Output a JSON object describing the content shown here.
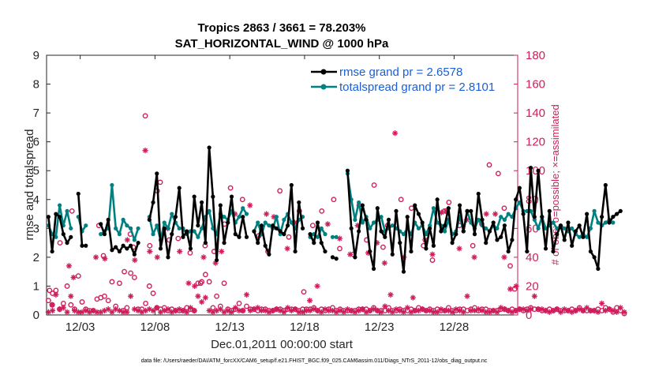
{
  "chart_data": {
    "type": "line",
    "title": "Tropics 2863 / 3661 = 78.203%",
    "subtitle": "SAT_HORIZONTAL_WIND @ 1000 hPa",
    "xlabel": "Dec.01,2011 00:00:00 start",
    "ylabel": "rmse and totalspread",
    "ylabel_right": "# of obs: o=possible; ×=assimilated",
    "footnote": "data file: /Users/raeder/DAI/ATM_forcXX/CAM6_setup/f.e21.FHIST_BGC.f09_025.CAM6assim.011/Diags_NTrS_2011-12/obs_diag_output.nc",
    "x_unit": "days since Dec.01,2011 00:00",
    "xlim": [
      0,
      31.5
    ],
    "ylim": [
      0,
      9
    ],
    "ylim_right": [
      0,
      180
    ],
    "x_ticks": [
      {
        "value": 2.25,
        "label": "12/03"
      },
      {
        "value": 7.25,
        "label": "12/08"
      },
      {
        "value": 12.25,
        "label": "12/13"
      },
      {
        "value": 17.25,
        "label": "12/18"
      },
      {
        "value": 22.25,
        "label": "12/23"
      },
      {
        "value": 27.25,
        "label": "12/28"
      }
    ],
    "y_ticks": [
      "0",
      "1",
      "2",
      "3",
      "4",
      "5",
      "6",
      "7",
      "8",
      "9"
    ],
    "y_ticks_right": [
      "0",
      "20",
      "40",
      "60",
      "80",
      "100",
      "120",
      "140",
      "160",
      "180"
    ],
    "legend": {
      "location": "top-right",
      "entries": [
        "rmse grand pr = 2.6578",
        "totalspread grand pr = 2.8101"
      ]
    },
    "colors": {
      "rmse": "#000000",
      "totalspread": "#008080",
      "obs": "#d01c5b",
      "legend_text": "#1a5fd6"
    },
    "series": [
      {
        "name": "rmse",
        "x_start": 0.125,
        "dx": 0.25,
        "values": [
          3.4,
          2.2,
          3.5,
          3.4,
          2.8,
          2.5,
          2.7,
          null,
          4.2,
          2.4,
          2.4,
          null,
          null,
          null,
          3.15,
          2.8,
          3.3,
          2.25,
          2.35,
          2.2,
          2.4,
          2.3,
          2.4,
          2.1,
          2.5,
          null,
          null,
          3.3,
          3.9,
          4.9,
          2.3,
          3.0,
          2.0,
          2.8,
          3.4,
          4.4,
          2.7,
          2.9,
          2.3,
          4.1,
          3.1,
          3.9,
          2.5,
          5.8,
          4.1,
          1.9,
          3.8,
          2.5,
          3.2,
          4.1,
          2.8,
          2.7,
          3.4,
          2.7,
          null,
          2.9,
          2.5,
          3.1,
          2.4,
          2.1,
          3.1,
          3.0,
          2.9,
          2.8,
          3.1,
          4.5,
          2.2,
          3.9,
          3.0,
          null,
          2.8,
          2.5,
          3.2,
          2.5,
          2.2,
          null,
          2.0,
          1.95,
          null,
          null,
          5.0,
          3.0,
          2.0,
          2.9,
          3.8,
          3.3,
          2.2,
          1.6,
          3.7,
          2.9,
          2.7,
          3.3,
          2.1,
          3.6,
          2.5,
          1.5,
          3.4,
          2.2,
          3.8,
          3.5,
          3.2,
          2.3,
          3.0,
          2.4,
          4.0,
          2.9,
          3.1,
          3.7,
          2.5,
          2.8,
          3.8,
          2.9,
          3.6,
          3.6,
          2.8,
          4.2,
          3.3,
          2.5,
          2.9,
          3.2,
          2.6,
          2.7,
          3.1,
          2.2,
          2.6,
          4.0,
          4.4,
          3.5,
          2.2,
          5.1,
          3.4,
          5.0,
          3.4,
          2.3,
          3.6,
          2.2,
          2.8,
          3.1,
          2.6,
          3.2,
          2.4,
          2.9,
          3.1,
          2.7,
          3.5,
          2.2,
          2.0,
          1.6,
          3.4,
          4.5,
          3.2,
          3.4,
          3.5,
          3.6
        ]
      },
      {
        "name": "totalspread",
        "x_start": 0.125,
        "dx": 0.25,
        "values": [
          3.1,
          2.8,
          2.7,
          3.8,
          3.1,
          3.6,
          3.0,
          null,
          3.4,
          2.9,
          3.1,
          null,
          null,
          null,
          2.8,
          2.9,
          3.0,
          4.5,
          3.0,
          2.8,
          3.3,
          3.1,
          3.0,
          2.6,
          3.0,
          null,
          null,
          3.4,
          2.8,
          3.1,
          2.6,
          3.2,
          3.0,
          3.5,
          3.2,
          3.0,
          3.0,
          2.8,
          2.9,
          2.9,
          2.7,
          3.0,
          3.4,
          3.6,
          3.0,
          2.8,
          3.5,
          3.4,
          3.3,
          3.6,
          3.2,
          3.4,
          3.7,
          3.5,
          null,
          2.9,
          3.2,
          2.8,
          3.2,
          3.1,
          3.0,
          3.4,
          2.8,
          3.3,
          3.5,
          3.2,
          3.0,
          3.3,
          3.4,
          null,
          2.7,
          2.8,
          2.7,
          3.0,
          2.8,
          null,
          2.7,
          2.7,
          null,
          null,
          4.9,
          4.0,
          3.3,
          3.9,
          3.2,
          3.4,
          3.0,
          3.2,
          3.3,
          3.4,
          2.9,
          3.0,
          3.1,
          3.0,
          2.9,
          2.8,
          3.0,
          2.8,
          3.2,
          3.0,
          3.1,
          2.8,
          3.1,
          3.7,
          3.2,
          3.1,
          2.9,
          3.3,
          2.8,
          2.9,
          3.4,
          2.9,
          3.6,
          3.2,
          3.0,
          3.3,
          3.1,
          3.0,
          2.9,
          3.1,
          3.0,
          3.4,
          3.3,
          3.5,
          3.4,
          3.7,
          3.9,
          3.6,
          3.6,
          3.6,
          3.3,
          3.0,
          3.4,
          3.0,
          3.1,
          3.2,
          3.0,
          3.1,
          3.0,
          2.9,
          3.0,
          2.8,
          2.7,
          2.8,
          2.7,
          3.0,
          3.6,
          3.2,
          3.1,
          3.2,
          3.3,
          3.2
        ]
      },
      {
        "name": "obs possible (o)",
        "x_start": 0.125,
        "dx": 0.25,
        "values": [
          10,
          7,
          17,
          4,
          8,
          20,
          7,
          4,
          27,
          9,
          4,
          3,
          3,
          11,
          12,
          13,
          10,
          23,
          6,
          22,
          3,
          5,
          29,
          26,
          4,
          4,
          8,
          20,
          15,
          5,
          4,
          5,
          3,
          4,
          3,
          3,
          3,
          5,
          4,
          3,
          22,
          23,
          28,
          23,
          5,
          13,
          6,
          22,
          4,
          3,
          4,
          8,
          3,
          6,
          4,
          4,
          3,
          4,
          4,
          3,
          3,
          4,
          4,
          3,
          4,
          4,
          4,
          3,
          4,
          4,
          4,
          5,
          3,
          4,
          3,
          4,
          5,
          3,
          4,
          3,
          3,
          3,
          3,
          4,
          4,
          4,
          3,
          5,
          3,
          3,
          3,
          5,
          3,
          3,
          4,
          3,
          3,
          4,
          3,
          5,
          4,
          3,
          4,
          3,
          4,
          3,
          3,
          5,
          3,
          3,
          4,
          4,
          3,
          4,
          5,
          3,
          4,
          4,
          3,
          3,
          3,
          4,
          4,
          3,
          4,
          3,
          4,
          3,
          4,
          5,
          4,
          4,
          3,
          3,
          4,
          3,
          4,
          3,
          3,
          3,
          4,
          3,
          5,
          3,
          3,
          3,
          3,
          4,
          3,
          5,
          4,
          2,
          5,
          3,
          1
        ]
      },
      {
        "name": "obs assimilated (×)",
        "x_start": 0.125,
        "dx": 0.25,
        "values": [
          2,
          7,
          14,
          4,
          5,
          2,
          13,
          3,
          2,
          2,
          3,
          2,
          3,
          2,
          2,
          3,
          4,
          2,
          4,
          3,
          2,
          2,
          13,
          4,
          3,
          2,
          3,
          4,
          3,
          5,
          2,
          3,
          4,
          2,
          3,
          4,
          3,
          2,
          5,
          3,
          13,
          9,
          12,
          3,
          2,
          3,
          4,
          2,
          3,
          2,
          5,
          3,
          3,
          14,
          3,
          4,
          5,
          3,
          3,
          2,
          3,
          4,
          3,
          2,
          5,
          3,
          4,
          2,
          2,
          3,
          3,
          4,
          3,
          2,
          4,
          3,
          3,
          2,
          3,
          2,
          4,
          3,
          2,
          3,
          4,
          2,
          3,
          4,
          3,
          2,
          6,
          3,
          2,
          4,
          3,
          2,
          5,
          2,
          3,
          3,
          4,
          3,
          3,
          2,
          2,
          4,
          3,
          3,
          2,
          4,
          3,
          2,
          13,
          3,
          3,
          4,
          3,
          2,
          2,
          3,
          2,
          5,
          4,
          3,
          2,
          3,
          4,
          4,
          3,
          4,
          13,
          4,
          4,
          3,
          2,
          3,
          4,
          2,
          4,
          3,
          2,
          3,
          4,
          3,
          5,
          3,
          3,
          2,
          8,
          3,
          4,
          3,
          2,
          5,
          2
        ]
      },
      {
        "name": "obs possible (o) highs",
        "points": [
          [
            0.2,
            17
          ],
          [
            0.4,
            15
          ],
          [
            0.9,
            50
          ],
          [
            1.7,
            72
          ],
          [
            3.5,
            62
          ],
          [
            3.8,
            41
          ],
          [
            5.2,
            30
          ],
          [
            5.6,
            56
          ],
          [
            5.8,
            47
          ],
          [
            6.6,
            138
          ],
          [
            6.9,
            48
          ],
          [
            7.4,
            86
          ],
          [
            7.6,
            92
          ],
          [
            8.2,
            52
          ],
          [
            8.8,
            53
          ],
          [
            9.6,
            43
          ],
          [
            10.3,
            22
          ],
          [
            10.6,
            48
          ],
          [
            11.2,
            44
          ],
          [
            11.9,
            63
          ],
          [
            12.3,
            88
          ],
          [
            13.1,
            80
          ],
          [
            14.2,
            55
          ],
          [
            14.8,
            44
          ],
          [
            15.6,
            86
          ],
          [
            16.2,
            54
          ],
          [
            16.9,
            72
          ],
          [
            17.2,
            16
          ],
          [
            17.8,
            62
          ],
          [
            18.4,
            72
          ],
          [
            19.2,
            80
          ],
          [
            19.6,
            46
          ],
          [
            20.5,
            42
          ],
          [
            20.9,
            76
          ],
          [
            21.4,
            52
          ],
          [
            21.9,
            90
          ],
          [
            22.5,
            47
          ],
          [
            22.8,
            62
          ],
          [
            23.2,
            160
          ],
          [
            23.7,
            80
          ],
          [
            24.4,
            74
          ],
          [
            25.2,
            48
          ],
          [
            25.8,
            38
          ],
          [
            26.6,
            72
          ],
          [
            26.9,
            78
          ],
          [
            27.6,
            62
          ],
          [
            28.5,
            48
          ],
          [
            29.1,
            63
          ],
          [
            29.6,
            104
          ],
          [
            30.2,
            98
          ],
          [
            30.6,
            74
          ],
          [
            31.0,
            34
          ],
          [
            31.3,
            18
          ]
        ]
      },
      {
        "name": "obs assimilated (×) highs",
        "points": [
          [
            0.4,
            3
          ],
          [
            1.5,
            34
          ],
          [
            1.8,
            26
          ],
          [
            3.3,
            40
          ],
          [
            3.9,
            39
          ],
          [
            5.4,
            52
          ],
          [
            5.9,
            38
          ],
          [
            6.6,
            114
          ],
          [
            6.9,
            44
          ],
          [
            7.4,
            40
          ],
          [
            8.1,
            60
          ],
          [
            8.9,
            44
          ],
          [
            9.5,
            22
          ],
          [
            9.9,
            20
          ],
          [
            10.5,
            40
          ],
          [
            11.3,
            36
          ],
          [
            11.7,
            44
          ],
          [
            12.6,
            70
          ],
          [
            13.6,
            76
          ],
          [
            14.7,
            70
          ],
          [
            15.2,
            68
          ],
          [
            16.1,
            46
          ],
          [
            16.6,
            64
          ],
          [
            17.6,
            10
          ],
          [
            18.1,
            20
          ],
          [
            18.8,
            63
          ],
          [
            19.6,
            53
          ],
          [
            20.3,
            42
          ],
          [
            20.8,
            62
          ],
          [
            21.5,
            43
          ],
          [
            22.1,
            50
          ],
          [
            22.6,
            36
          ],
          [
            23.0,
            14
          ],
          [
            23.3,
            126
          ],
          [
            23.9,
            40
          ],
          [
            24.5,
            12
          ],
          [
            25.3,
            52
          ],
          [
            25.8,
            42
          ],
          [
            26.4,
            71
          ],
          [
            26.7,
            72
          ],
          [
            27.6,
            46
          ],
          [
            28.1,
            66
          ],
          [
            28.6,
            40
          ],
          [
            29.4,
            70
          ],
          [
            30.0,
            70
          ],
          [
            30.6,
            40
          ],
          [
            31.0,
            18
          ],
          [
            31.4,
            20
          ]
        ]
      }
    ]
  }
}
